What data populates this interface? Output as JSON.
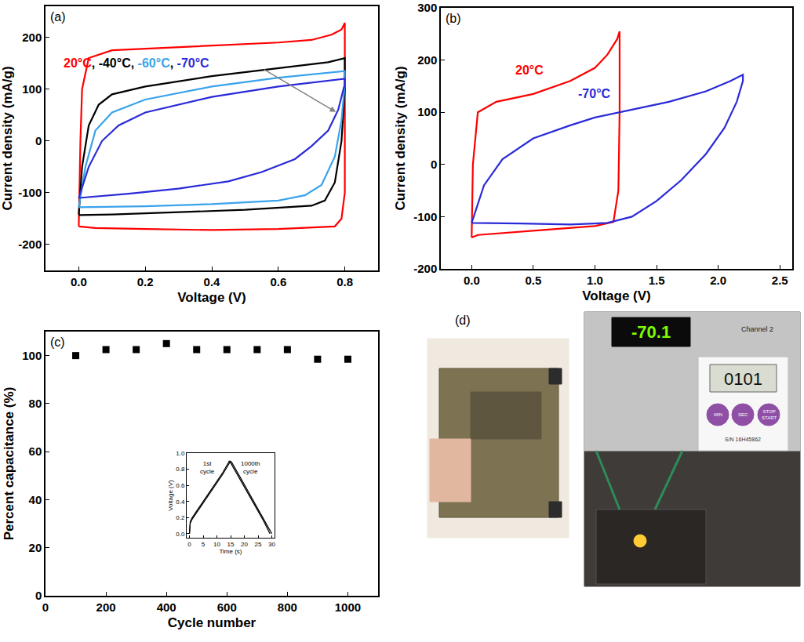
{
  "chart_data": [
    {
      "type": "line",
      "title": "(a)",
      "x_label": "Voltage (V)",
      "y_label": "Current density (mA/g)",
      "xlim": [
        -0.1,
        0.9
      ],
      "xticks": [
        {
          "value": 0,
          "label": "0.0"
        },
        0.2,
        0.4,
        0.6,
        0.8
      ],
      "ylim": [
        -250,
        260
      ],
      "yticks": [
        -200,
        -100,
        0,
        100,
        200
      ],
      "annotations": [
        {
          "text": "20°C, -40°C, -60°C, -70°C",
          "x": -0.05,
          "y": 150
        }
      ],
      "series": [
        {
          "name": "20°C",
          "color": "#ff0000",
          "x": [
            0,
            0.005,
            0.01,
            0.03,
            0.1,
            0.2,
            0.4,
            0.6,
            0.7,
            0.76,
            0.79,
            0.8,
            0.8,
            0.8,
            0.79,
            0.77,
            0.6,
            0.4,
            0.2,
            0.05,
            0
          ],
          "values": [
            -165,
            0,
            100,
            160,
            175,
            178,
            185,
            190,
            195,
            205,
            215,
            228,
            50,
            -100,
            -150,
            -165,
            -170,
            -172,
            -170,
            -168,
            -165
          ]
        },
        {
          "name": "-40°C",
          "color": "#000000",
          "x": [
            0,
            0.01,
            0.03,
            0.06,
            0.1,
            0.2,
            0.4,
            0.6,
            0.75,
            0.8,
            0.8,
            0.79,
            0.77,
            0.74,
            0.7,
            0.5,
            0.3,
            0.1,
            0
          ],
          "values": [
            -142,
            -50,
            30,
            70,
            90,
            105,
            125,
            140,
            152,
            160,
            100,
            0,
            -80,
            -115,
            -125,
            -133,
            -138,
            -142,
            -143
          ]
        },
        {
          "name": "-60°C",
          "color": "#3aa3ec",
          "x": [
            0,
            0.02,
            0.05,
            0.1,
            0.2,
            0.4,
            0.6,
            0.8,
            0.8,
            0.79,
            0.77,
            0.73,
            0.68,
            0.6,
            0.4,
            0.2,
            0
          ],
          "values": [
            -128,
            -50,
            20,
            55,
            80,
            105,
            122,
            135,
            110,
            40,
            -30,
            -85,
            -105,
            -115,
            -122,
            -126,
            -128
          ]
        },
        {
          "name": "-70°C",
          "color": "#2a2ad8",
          "x": [
            0,
            0.03,
            0.07,
            0.12,
            0.2,
            0.4,
            0.6,
            0.8,
            0.8,
            0.78,
            0.75,
            0.7,
            0.65,
            0.55,
            0.45,
            0.3,
            0.15,
            0
          ],
          "values": [
            -110,
            -50,
            0,
            30,
            55,
            85,
            105,
            120,
            110,
            60,
            20,
            -10,
            -35,
            -60,
            -78,
            -92,
            -102,
            -110
          ]
        }
      ]
    },
    {
      "type": "line",
      "title": "(b)",
      "x_label": "Voltage (V)",
      "y_label": "Current density (mA/g)",
      "xlim": [
        -0.25,
        2.6
      ],
      "xticks": [
        {
          "value": 0,
          "label": "0.0"
        },
        0.5,
        {
          "value": 1,
          "label": "1.0"
        },
        1.5,
        {
          "value": 2,
          "label": "2.0"
        },
        2.5
      ],
      "ylim": [
        -200,
        300
      ],
      "yticks": [
        -200,
        -100,
        0,
        100,
        200,
        300
      ],
      "annotations": [
        {
          "text": "20°C",
          "x": 0.34,
          "y": 181,
          "color": "#ff0000"
        },
        {
          "text": "-70°C",
          "x": 0.85,
          "y": 135,
          "color": "#2a2ad8"
        }
      ],
      "series": [
        {
          "name": "20°C",
          "color": "#ff0000",
          "x": [
            0,
            0.01,
            0.05,
            0.2,
            0.5,
            0.8,
            1.0,
            1.1,
            1.18,
            1.2,
            1.2,
            1.19,
            1.15,
            1.0,
            0.6,
            0.3,
            0.05,
            0
          ],
          "values": [
            -140,
            0,
            100,
            120,
            135,
            160,
            185,
            210,
            240,
            255,
            100,
            -50,
            -110,
            -118,
            -125,
            -130,
            -135,
            -140
          ]
        },
        {
          "name": "-70°C",
          "color": "#2a2ad8",
          "x": [
            0,
            0.1,
            0.25,
            0.5,
            0.8,
            1.0,
            1.3,
            1.6,
            1.9,
            2.1,
            2.2,
            2.2,
            2.15,
            2.05,
            1.9,
            1.7,
            1.5,
            1.3,
            1.1,
            0.8,
            0.4,
            0
          ],
          "values": [
            -112,
            -40,
            10,
            50,
            75,
            90,
            105,
            120,
            140,
            160,
            172,
            160,
            120,
            70,
            20,
            -30,
            -70,
            -100,
            -112,
            -115,
            -113,
            -112
          ]
        }
      ]
    },
    {
      "type": "scatter",
      "title": "(c)",
      "marker": "square",
      "x_label": "Cycle number",
      "y_label": "Percent capacitance (%)",
      "xlim": [
        0,
        1100
      ],
      "xticks": [
        0,
        200,
        400,
        600,
        800,
        1000
      ],
      "ylim": [
        0,
        110
      ],
      "yticks": [
        0,
        20,
        40,
        60,
        80,
        100
      ],
      "series": [
        {
          "color": "#000000",
          "x": [
            100,
            200,
            300,
            400,
            500,
            600,
            700,
            800,
            900,
            1000
          ],
          "values": [
            100,
            102.5,
            102.5,
            105,
            102.5,
            102.5,
            102.5,
            102.5,
            98.5,
            98.5
          ]
        }
      ]
    },
    {
      "type": "line",
      "x_label": "Time (s)",
      "y_label": "Voltage (V)",
      "xlim": [
        -1,
        31
      ],
      "xticks": [
        0,
        5,
        10,
        15,
        20,
        25,
        30
      ],
      "ylim": [
        -0.05,
        1.0
      ],
      "yticks": [
        {
          "value": 0,
          "label": "0.0"
        },
        0.2,
        0.4,
        0.6,
        0.8,
        {
          "value": 1,
          "label": "1.0"
        }
      ],
      "annotations": [
        {
          "text": "1st cycle",
          "x": 6.5,
          "y": 0.82
        },
        {
          "text": "1000th cycle",
          "x": 22,
          "y": 0.82
        }
      ],
      "series": [
        {
          "color": "#000000",
          "x": [
            0,
            0.3,
            1,
            3,
            6,
            9,
            12,
            14.5,
            15,
            18,
            21,
            24,
            27,
            29.3
          ],
          "values": [
            0,
            0.15,
            0.2,
            0.3,
            0.45,
            0.6,
            0.75,
            0.9,
            0.88,
            0.7,
            0.52,
            0.34,
            0.16,
            0
          ]
        },
        {
          "color": "#000000",
          "x": [
            0,
            0.3,
            1,
            3,
            6,
            9,
            12,
            15,
            15.5,
            18.5,
            21.5,
            24.5,
            27.5,
            30
          ],
          "values": [
            0,
            0.13,
            0.18,
            0.28,
            0.43,
            0.58,
            0.73,
            0.9,
            0.88,
            0.7,
            0.52,
            0.34,
            0.16,
            0
          ]
        }
      ]
    }
  ],
  "photos": {
    "title": "(d)",
    "display": "-70.1",
    "timer": "0101",
    "buttons": [
      "MIN",
      "SEC",
      "STOP START"
    ],
    "serial": "S/N 16H45862",
    "channel": "Channel 2"
  }
}
